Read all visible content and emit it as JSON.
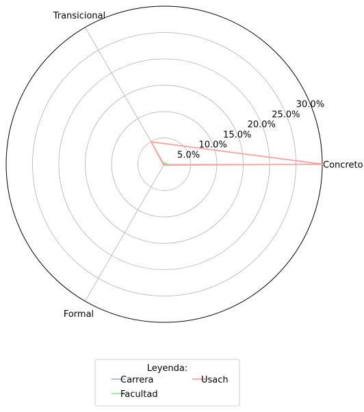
{
  "chart_data": {
    "type": "radar",
    "categories": [
      "Concreto",
      "Transicional",
      "Formal"
    ],
    "rmax": 30,
    "ticks": [
      5,
      10,
      15,
      20,
      25,
      30
    ],
    "tick_labels": [
      "5.0%",
      "10.0%",
      "15.0%",
      "20.0%",
      "25.0%",
      "30.0%"
    ],
    "grid": true,
    "series": [
      {
        "name": "Carrera",
        "values": [
          0.3,
          0.1,
          0.1
        ],
        "color": "#8ec0e8"
      },
      {
        "name": "Facultad",
        "values": [
          0.8,
          0.4,
          0.1
        ],
        "color": "#90ee90"
      },
      {
        "name": "Usach",
        "values": [
          30.2,
          4.9,
          0.2
        ],
        "color": "#ff9c9c"
      }
    ],
    "legend": {
      "title": "Leyenda:",
      "placement": "bottom-center"
    }
  }
}
